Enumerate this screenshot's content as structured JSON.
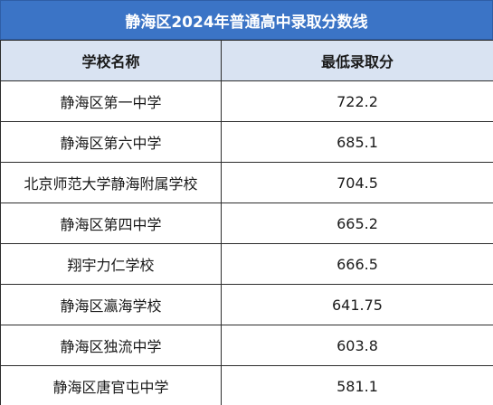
{
  "title": "静海区2024年普通高中录取分数线",
  "headers": {
    "school": "学校名称",
    "score": "最低录取分"
  },
  "rows": [
    {
      "school": "静海区第一中学",
      "score": "722.2"
    },
    {
      "school": "静海区第六中学",
      "score": "685.1"
    },
    {
      "school": "北京师范大学静海附属学校",
      "score": "704.5"
    },
    {
      "school": "静海区第四中学",
      "score": "665.2"
    },
    {
      "school": "翔宇力仁学校",
      "score": "666.5"
    },
    {
      "school": "静海区瀛海学校",
      "score": "641.75"
    },
    {
      "school": "静海区独流中学",
      "score": "603.8"
    },
    {
      "school": "静海区唐官屯中学",
      "score": "581.1"
    }
  ]
}
